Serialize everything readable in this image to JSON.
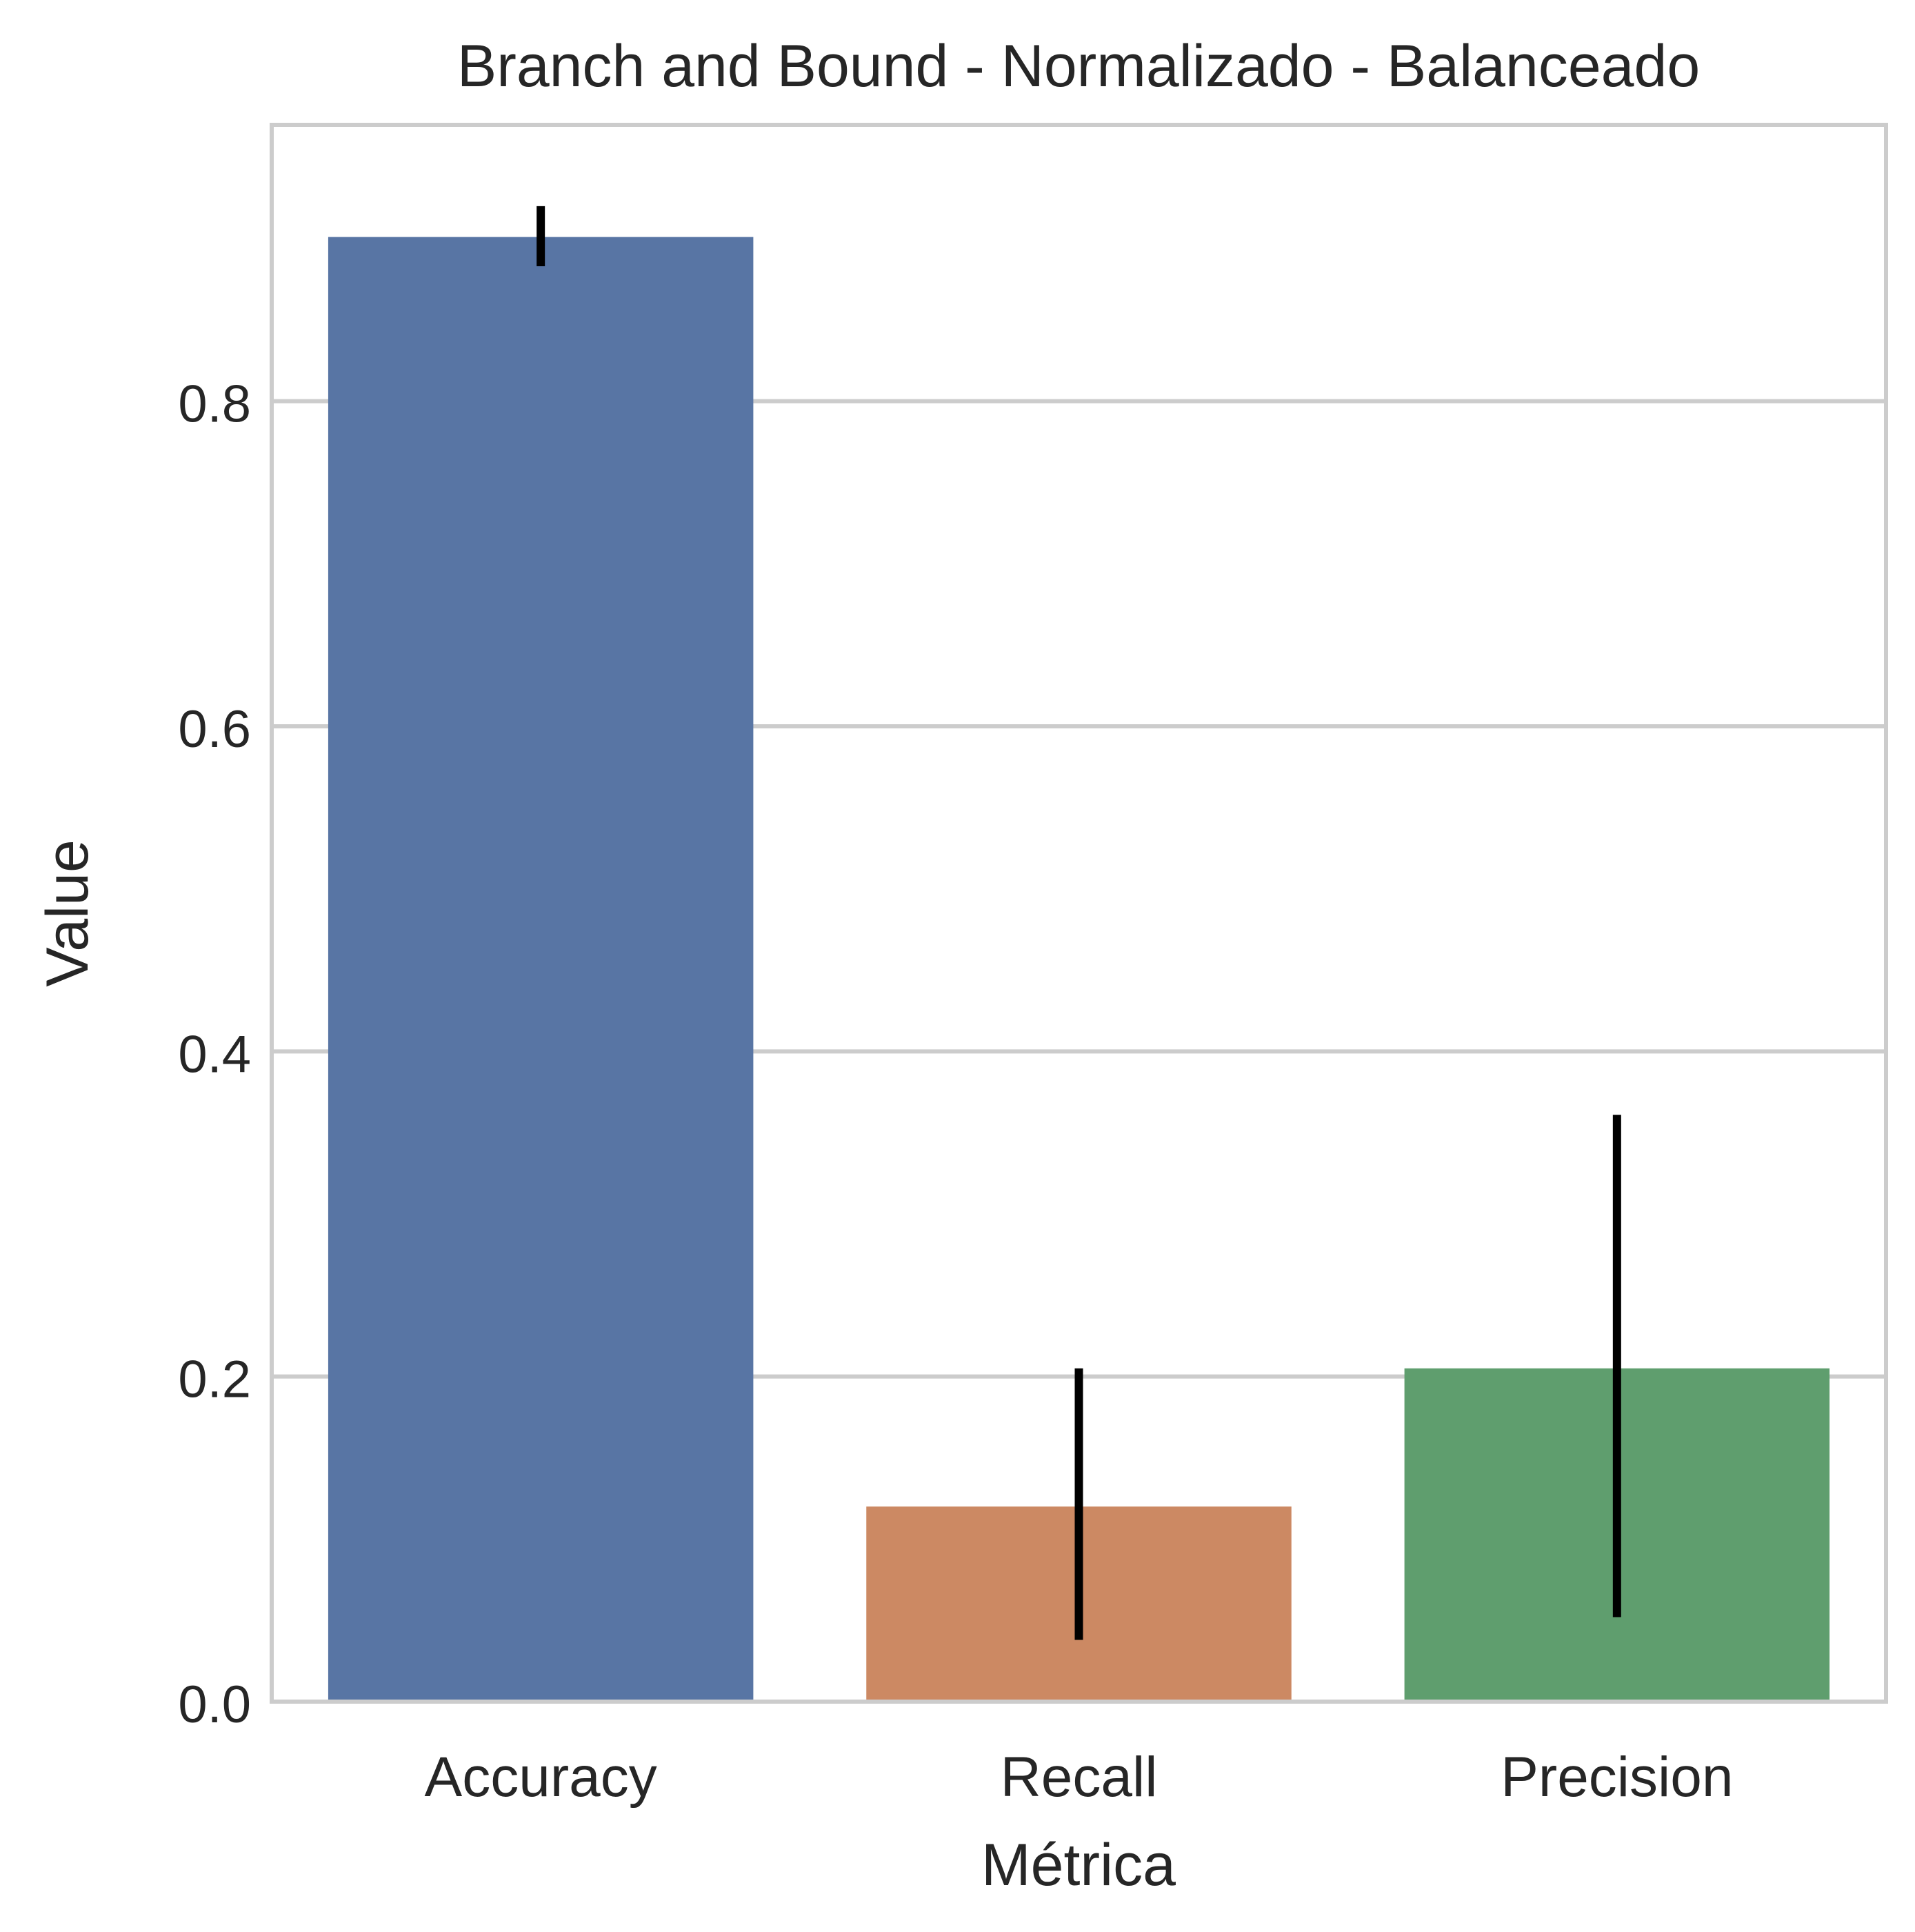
{
  "chart_data": {
    "type": "bar",
    "title": "Branch and Bound - Normalizado - Balanceado",
    "xlabel": "Métrica",
    "ylabel": "Value",
    "categories": [
      "Accuracy",
      "Recall",
      "Precision"
    ],
    "values": [
      0.901,
      0.12,
      0.205
    ],
    "error_bars": [
      {
        "low": 0.883,
        "high": 0.92
      },
      {
        "low": 0.038,
        "high": 0.205
      },
      {
        "low": 0.052,
        "high": 0.361
      }
    ],
    "colors": [
      "#5875a4",
      "#cc8963",
      "#5f9e6e"
    ],
    "error_color": "#000000",
    "ylim": [
      0,
      0.97
    ],
    "yticks": [
      0.0,
      0.2,
      0.4,
      0.6,
      0.8
    ],
    "ytick_labels": [
      "0.0",
      "0.2",
      "0.4",
      "0.6",
      "0.8"
    ],
    "grid": "y",
    "grid_color": "#cccccc",
    "legend": "none"
  }
}
